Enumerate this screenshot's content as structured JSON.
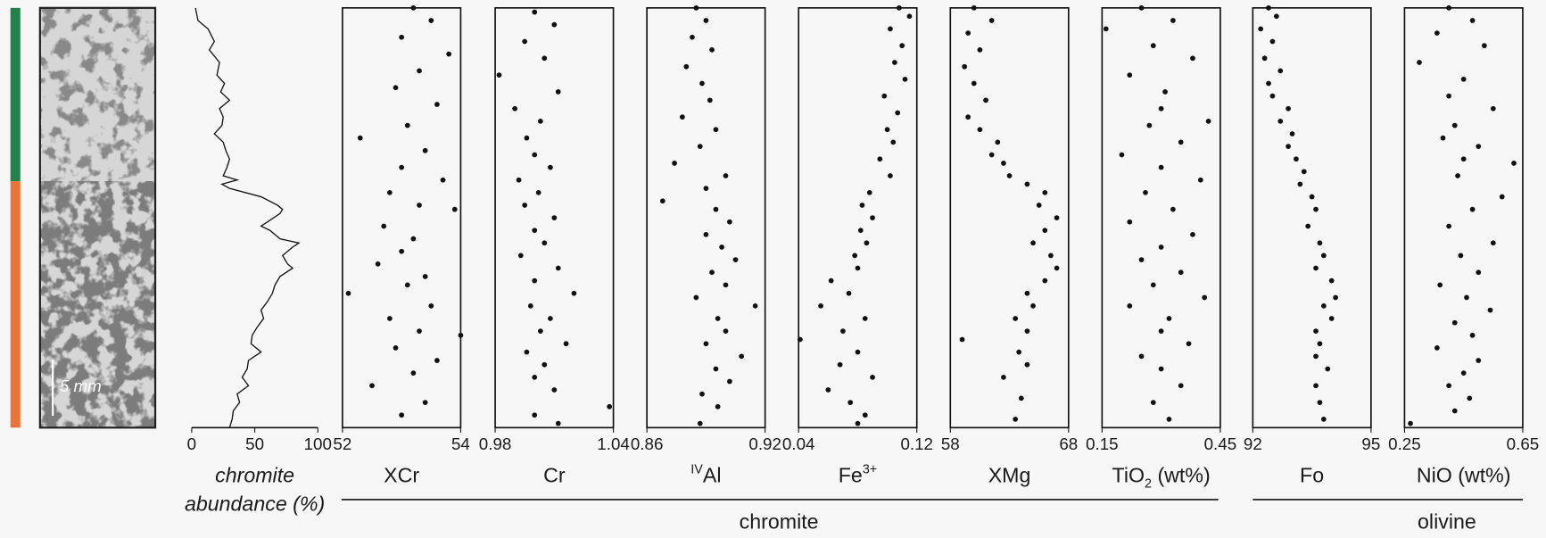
{
  "photo": {
    "scale_label": "5 mm"
  },
  "groups": [
    {
      "label": "chromite"
    },
    {
      "label": "olivine"
    }
  ],
  "chart_data": [
    {
      "type": "line",
      "xlabel": [
        [
          {
            "text": "chromite"
          }
        ],
        [
          {
            "text": "abundance (%)"
          }
        ]
      ],
      "xlabel_italic": true,
      "xlim": [
        0,
        100
      ],
      "xticks": [
        0,
        50,
        100
      ],
      "ylim": [
        0,
        100
      ],
      "values": [
        3,
        5,
        13,
        18,
        14,
        22,
        20,
        26,
        23,
        30,
        22,
        25,
        24,
        18,
        25,
        27,
        30,
        28,
        25,
        36,
        24,
        30,
        55,
        68,
        72,
        70,
        60,
        55,
        62,
        70,
        85,
        80,
        72,
        76,
        80,
        70,
        66,
        64,
        60,
        55,
        57,
        52,
        48,
        47,
        55,
        45,
        44,
        40,
        45,
        36,
        38,
        33,
        32,
        30
      ],
      "positions": [
        0,
        3,
        5,
        8,
        10,
        13,
        16,
        18,
        20,
        22,
        24,
        26,
        28,
        30,
        32,
        34,
        36,
        38,
        40,
        41,
        42,
        43,
        45,
        47,
        48,
        49,
        51,
        52,
        53,
        55,
        56,
        57,
        59,
        61,
        62,
        64,
        66,
        68,
        70,
        72,
        74,
        76,
        78,
        80,
        82,
        84,
        86,
        88,
        90,
        92,
        94,
        96,
        98,
        100
      ]
    },
    {
      "type": "scatter",
      "xlabel": [
        [
          {
            "text": "XCr"
          }
        ]
      ],
      "xlim": [
        52,
        54
      ],
      "xticks": [
        52,
        54
      ],
      "ylim": [
        0,
        100
      ],
      "color": "#111111",
      "values": [
        53.2,
        53.5,
        53.0,
        53.8,
        53.3,
        52.9,
        53.6,
        53.1,
        52.3,
        53.4,
        53.0,
        53.7,
        52.8,
        53.3,
        53.9,
        52.7,
        53.2,
        53.0,
        52.6,
        53.4,
        53.1,
        52.1,
        53.5,
        52.8,
        53.3,
        54.0,
        52.9,
        53.6,
        53.2,
        52.5,
        53.4,
        53.0
      ],
      "positions": [
        0,
        3,
        7,
        11,
        15,
        19,
        23,
        28,
        31,
        34,
        38,
        41,
        44,
        47,
        48,
        52,
        55,
        58,
        61,
        64,
        66,
        68,
        71,
        74,
        77,
        78,
        81,
        84,
        87,
        90,
        94,
        97
      ]
    },
    {
      "type": "scatter",
      "xlabel": [
        [
          {
            "text": "Cr"
          }
        ]
      ],
      "xlim": [
        0.98,
        1.04
      ],
      "xticks": [
        0.98,
        1.04
      ],
      "ylim": [
        0,
        100
      ],
      "color": "#111111",
      "values": [
        1.0,
        1.01,
        0.995,
        1.005,
        0.982,
        1.012,
        0.99,
        1.003,
        0.996,
        1.0,
        1.008,
        0.992,
        1.002,
        0.995,
        1.01,
        1.0,
        1.005,
        0.993,
        1.012,
        1.0,
        1.02,
        0.998,
        1.008,
        1.003,
        1.016,
        0.996,
        1.005,
        1.0,
        1.01,
        1.038,
        1.0,
        1.012
      ],
      "positions": [
        1,
        4,
        8,
        12,
        16,
        20,
        24,
        27,
        31,
        35,
        38,
        41,
        44,
        47,
        50,
        53,
        56,
        59,
        62,
        65,
        68,
        71,
        74,
        77,
        80,
        82,
        85,
        88,
        91,
        95,
        97,
        99
      ]
    },
    {
      "type": "scatter",
      "xlabel": [
        [
          {
            "text": "IV",
            "shift": "super"
          },
          {
            "text": "Al"
          }
        ]
      ],
      "xlim": [
        0.86,
        0.92
      ],
      "xticks": [
        0.86,
        0.92
      ],
      "ylim": [
        0,
        100
      ],
      "color": "#111111",
      "values": [
        0.885,
        0.89,
        0.883,
        0.893,
        0.88,
        0.888,
        0.892,
        0.878,
        0.895,
        0.887,
        0.874,
        0.9,
        0.89,
        0.868,
        0.895,
        0.902,
        0.89,
        0.898,
        0.905,
        0.893,
        0.9,
        0.885,
        0.915,
        0.896,
        0.9,
        0.89,
        0.908,
        0.895,
        0.902,
        0.888,
        0.896,
        0.887
      ],
      "positions": [
        0,
        3,
        7,
        10,
        14,
        18,
        22,
        26,
        29,
        33,
        37,
        40,
        43,
        46,
        48,
        51,
        54,
        57,
        60,
        63,
        66,
        69,
        71,
        74,
        77,
        80,
        83,
        86,
        89,
        92,
        95,
        99
      ]
    },
    {
      "type": "scatter",
      "xlabel": [
        [
          {
            "text": "Fe"
          },
          {
            "text": "3+",
            "shift": "super"
          }
        ]
      ],
      "xlim": [
        0.04,
        0.12
      ],
      "xticks": [
        0.04,
        0.12
      ],
      "ylim": [
        0,
        100
      ],
      "color": "#111111",
      "values": [
        0.108,
        0.115,
        0.102,
        0.11,
        0.105,
        0.112,
        0.098,
        0.107,
        0.1,
        0.104,
        0.095,
        0.102,
        0.088,
        0.083,
        0.09,
        0.082,
        0.086,
        0.078,
        0.08,
        0.062,
        0.074,
        0.055,
        0.085,
        0.07,
        0.041,
        0.08,
        0.068,
        0.09,
        0.06,
        0.075,
        0.085,
        0.08
      ],
      "positions": [
        0,
        2,
        5,
        9,
        13,
        17,
        21,
        25,
        29,
        32,
        36,
        40,
        44,
        47,
        50,
        53,
        56,
        59,
        62,
        65,
        68,
        71,
        74,
        77,
        79,
        82,
        85,
        88,
        91,
        94,
        97,
        99
      ]
    },
    {
      "type": "scatter",
      "xlabel": [
        [
          {
            "text": "XMg"
          }
        ]
      ],
      "xlim": [
        58,
        68
      ],
      "xticks": [
        58,
        68
      ],
      "ylim": [
        0,
        100
      ],
      "color": "#111111",
      "values": [
        60.0,
        61.5,
        59.5,
        60.5,
        59.2,
        60.0,
        61.0,
        59.5,
        60.5,
        62.0,
        61.5,
        62.5,
        63.0,
        64.5,
        66.0,
        65.5,
        67.0,
        66.0,
        65.0,
        66.5,
        67.0,
        66.0,
        64.5,
        65.0,
        63.5,
        64.5,
        59.0,
        63.8,
        64.5,
        62.5,
        64.0,
        63.5
      ],
      "positions": [
        0,
        3,
        6,
        10,
        14,
        18,
        22,
        26,
        29,
        32,
        35,
        37,
        40,
        42,
        44,
        47,
        50,
        53,
        56,
        59,
        62,
        65,
        68,
        71,
        74,
        77,
        79,
        82,
        85,
        88,
        93,
        98
      ]
    },
    {
      "type": "scatter",
      "xlabel": [
        [
          {
            "text": "TiO"
          },
          {
            "text": "2",
            "shift": "sub"
          },
          {
            "text": " (wt%)"
          }
        ]
      ],
      "xlim": [
        0.15,
        0.45
      ],
      "xticks": [
        0.15,
        0.45
      ],
      "ylim": [
        0,
        100
      ],
      "color": "#111111",
      "values": [
        0.25,
        0.33,
        0.16,
        0.28,
        0.38,
        0.22,
        0.31,
        0.3,
        0.42,
        0.27,
        0.35,
        0.2,
        0.3,
        0.4,
        0.26,
        0.33,
        0.22,
        0.38,
        0.3,
        0.25,
        0.35,
        0.28,
        0.41,
        0.22,
        0.32,
        0.3,
        0.37,
        0.25,
        0.3,
        0.35,
        0.28,
        0.32
      ],
      "positions": [
        0,
        3,
        5,
        9,
        12,
        16,
        20,
        24,
        27,
        28,
        32,
        35,
        38,
        41,
        44,
        48,
        51,
        54,
        57,
        60,
        63,
        66,
        69,
        71,
        74,
        77,
        80,
        83,
        86,
        90,
        94,
        98
      ]
    },
    {
      "type": "scatter",
      "xlabel": [
        [
          {
            "text": "Fo"
          }
        ]
      ],
      "xlim": [
        92,
        95
      ],
      "xticks": [
        92,
        95
      ],
      "ylim": [
        0,
        100
      ],
      "color": "#111111",
      "values": [
        92.4,
        92.6,
        92.2,
        92.5,
        92.3,
        92.7,
        92.4,
        92.5,
        92.9,
        92.7,
        93.0,
        92.9,
        93.1,
        93.3,
        93.2,
        93.5,
        93.6,
        93.4,
        93.7,
        93.8,
        93.6,
        94.0,
        94.1,
        93.8,
        94.0,
        93.6,
        93.7,
        93.6,
        93.9,
        93.6,
        93.7,
        93.8
      ],
      "positions": [
        0,
        2,
        5,
        8,
        12,
        15,
        18,
        21,
        24,
        27,
        30,
        33,
        36,
        39,
        42,
        45,
        48,
        52,
        56,
        59,
        62,
        65,
        69,
        71,
        74,
        77,
        80,
        83,
        86,
        90,
        94,
        98
      ]
    },
    {
      "type": "scatter",
      "xlabel": [
        [
          {
            "text": "NiO (wt%)"
          }
        ]
      ],
      "xlim": [
        0.25,
        0.65
      ],
      "xticks": [
        0.25,
        0.65
      ],
      "ylim": [
        0,
        100
      ],
      "color": "#111111",
      "values": [
        0.4,
        0.48,
        0.36,
        0.52,
        0.3,
        0.45,
        0.4,
        0.55,
        0.42,
        0.38,
        0.5,
        0.45,
        0.62,
        0.43,
        0.58,
        0.48,
        0.4,
        0.55,
        0.44,
        0.5,
        0.37,
        0.46,
        0.54,
        0.42,
        0.48,
        0.36,
        0.5,
        0.45,
        0.4,
        0.47,
        0.42,
        0.27
      ],
      "positions": [
        0,
        3,
        6,
        9,
        13,
        17,
        21,
        24,
        28,
        31,
        33,
        36,
        37,
        40,
        45,
        48,
        52,
        56,
        59,
        63,
        66,
        69,
        72,
        75,
        78,
        81,
        84,
        87,
        90,
        93,
        96,
        99
      ]
    }
  ]
}
